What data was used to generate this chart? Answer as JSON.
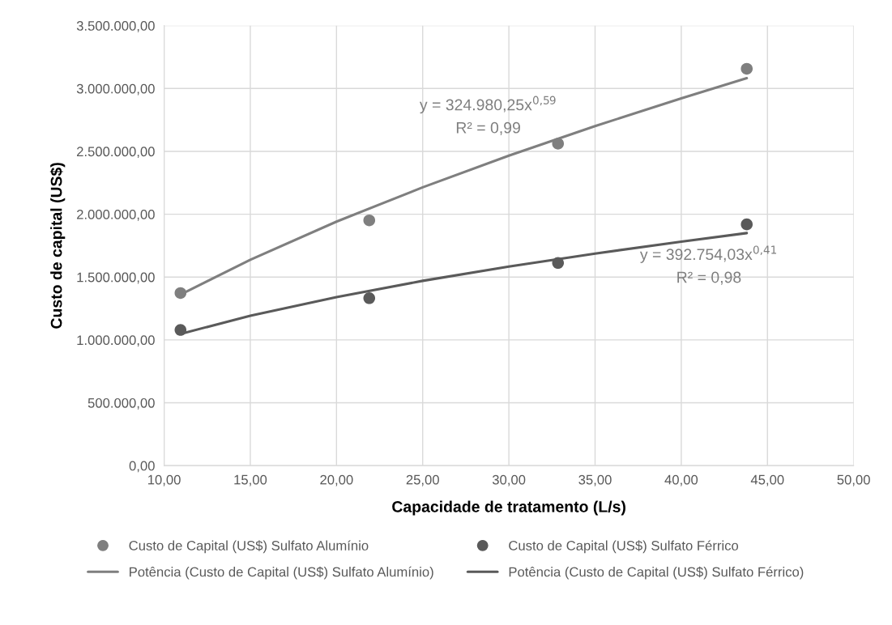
{
  "chart_data": {
    "type": "scatter",
    "xlabel": "Capacidade de tratamento (L/s)",
    "ylabel": "Custo de capital (US$)",
    "series": [
      {
        "name": "Custo de Capital (US$) Sulfato Alumínio",
        "color": "#7f7f7f",
        "marker": "circle",
        "x": [
          10.95,
          21.9,
          32.85,
          43.8
        ],
        "values": [
          1373000,
          1951000,
          2561000,
          3157000
        ]
      },
      {
        "name": "Custo de Capital (US$) Sulfato Férrico",
        "color": "#5a5a5a",
        "marker": "circle",
        "x": [
          10.95,
          21.9,
          32.85,
          43.8
        ],
        "values": [
          1079000,
          1332000,
          1612000,
          1919000
        ]
      },
      {
        "name": "Potência (Custo de Capital (US$) Sulfato Alumínio)",
        "type": "line",
        "color": "#7f7f7f",
        "x": [
          10.95,
          15,
          20,
          25,
          30,
          35,
          40,
          43.8
        ],
        "values": [
          1361000,
          1638000,
          1941000,
          2214000,
          2466000,
          2701000,
          2921000,
          3082000
        ]
      },
      {
        "name": "Potência (Custo de Capital (US$) Sulfato Férrico)",
        "type": "line",
        "color": "#5a5a5a",
        "x": [
          10.95,
          15,
          20,
          25,
          30,
          35,
          40,
          43.8
        ],
        "values": [
          1048000,
          1192000,
          1341000,
          1470000,
          1584000,
          1687000,
          1782000,
          1850000
        ]
      }
    ],
    "annotations": [
      "y = 324.980,25x$^{0,59}$",
      "R² = 0,99",
      "y = 392.754,03x$^{0,41}$",
      "R² = 0,98"
    ],
    "xlim": [
      10,
      50
    ],
    "xticks": [
      {
        "value": 10,
        "label": "10,00"
      },
      {
        "value": 15,
        "label": "15,00"
      },
      {
        "value": 20,
        "label": "20,00"
      },
      {
        "value": 25,
        "label": "25,00"
      },
      {
        "value": 30,
        "label": "30,00"
      },
      {
        "value": 35,
        "label": "35,00"
      },
      {
        "value": 40,
        "label": "40,00"
      },
      {
        "value": 45,
        "label": "45,00"
      },
      {
        "value": 50,
        "label": "50,00"
      }
    ],
    "ylim": [
      0,
      3500000
    ],
    "yticks": [
      {
        "value": 0,
        "label": "0,00"
      },
      {
        "value": 500000,
        "label": "500.000,00"
      },
      {
        "value": 1000000,
        "label": "1.000.000,00"
      },
      {
        "value": 1500000,
        "label": "1.500.000,00"
      },
      {
        "value": 2000000,
        "label": "2.000.000,00"
      },
      {
        "value": 2500000,
        "label": "2.500.000,00"
      },
      {
        "value": 3000000,
        "label": "3.000.000,00"
      },
      {
        "value": 3500000,
        "label": "3.500.000,00"
      }
    ],
    "grid": true,
    "legend": "bottom",
    "line_style": "solid"
  }
}
